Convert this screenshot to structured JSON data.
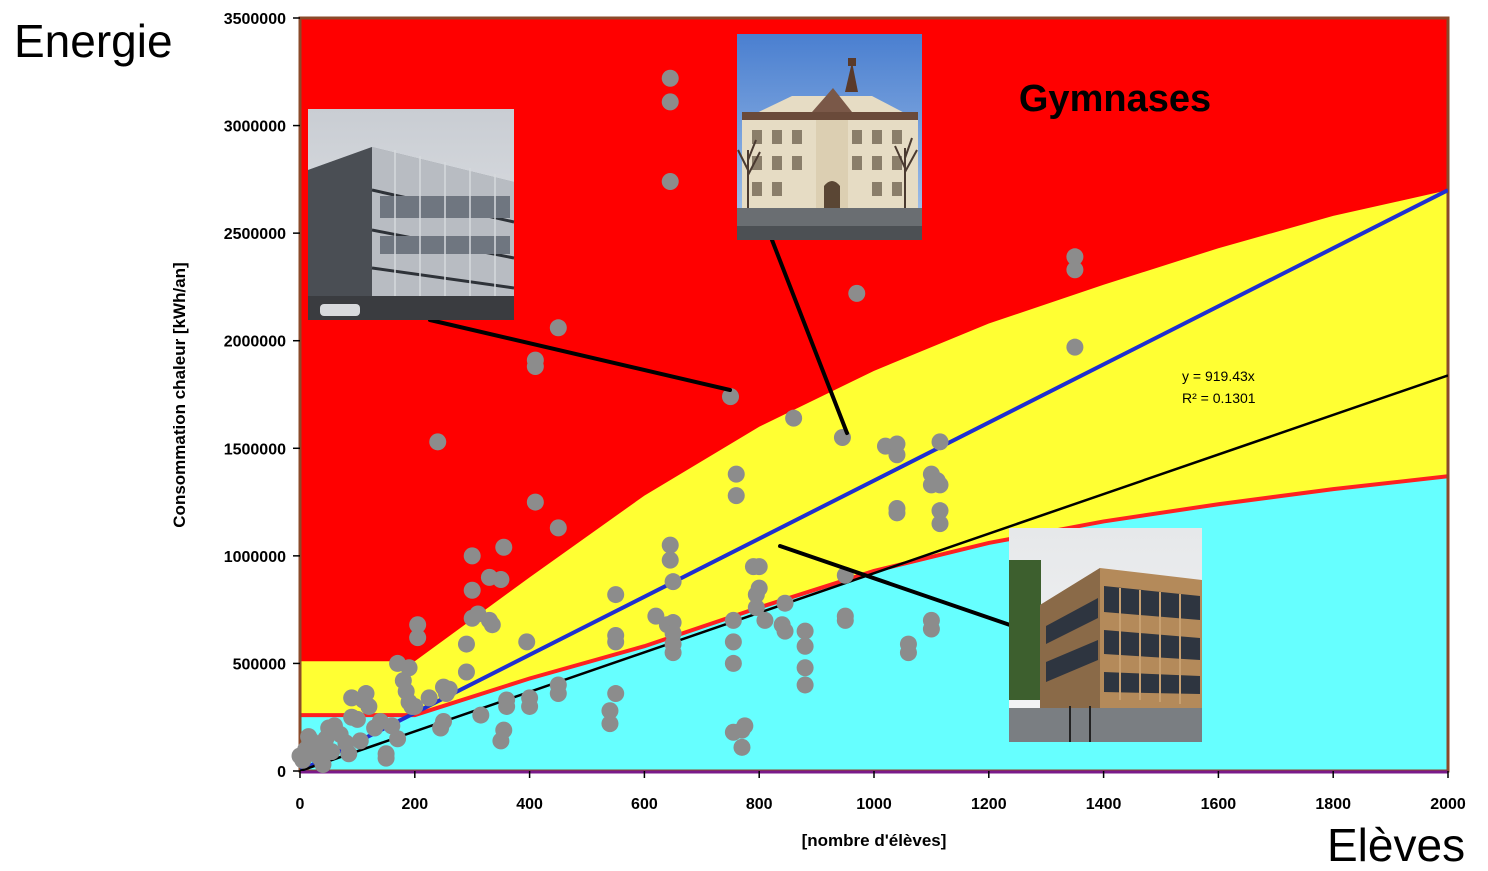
{
  "corner_labels": {
    "y_word": "Energie",
    "x_word": "Elèves"
  },
  "chart_data": {
    "type": "scatter",
    "title": "Gymnases",
    "xlabel": "[nombre d'élèves]",
    "ylabel": "Consommation chaleur [kWh/an]",
    "xlim": [
      0,
      2000
    ],
    "ylim": [
      0,
      3500000
    ],
    "x_ticks": [
      0,
      200,
      400,
      600,
      800,
      1000,
      1200,
      1400,
      1600,
      1800,
      2000
    ],
    "y_ticks": [
      0,
      500000,
      1000000,
      1500000,
      2000000,
      2500000,
      3000000,
      3500000
    ],
    "grid": false,
    "legend": "none",
    "trendline": {
      "equation_text": "y = 919.43x",
      "r2_text": "R² = 0.1301",
      "slope": 919.43,
      "color": "#000000"
    },
    "blue_reference_line": {
      "points": [
        [
          0,
          0
        ],
        [
          2000,
          2700000
        ]
      ],
      "color": "#1f2fd0"
    },
    "zones": {
      "red_color": "#ff0000",
      "yellow_color": "#ffff33",
      "cyan_color": "#66ffff",
      "yellow_upper_boundary": [
        [
          0,
          510000
        ],
        [
          200,
          510000
        ],
        [
          400,
          900000
        ],
        [
          600,
          1280000
        ],
        [
          800,
          1600000
        ],
        [
          1000,
          1860000
        ],
        [
          1200,
          2080000
        ],
        [
          1400,
          2260000
        ],
        [
          1600,
          2430000
        ],
        [
          1800,
          2580000
        ],
        [
          2000,
          2700000
        ]
      ],
      "cyan_upper_boundary": [
        [
          0,
          260000
        ],
        [
          200,
          260000
        ],
        [
          400,
          430000
        ],
        [
          600,
          580000
        ],
        [
          800,
          760000
        ],
        [
          1000,
          930000
        ],
        [
          1200,
          1060000
        ],
        [
          1400,
          1160000
        ],
        [
          1600,
          1240000
        ],
        [
          1800,
          1310000
        ],
        [
          2000,
          1370000
        ]
      ]
    },
    "series": [
      {
        "color": "#8c8c8c",
        "points": [
          [
            0,
            70000
          ],
          [
            5,
            50000
          ],
          [
            10,
            100000
          ],
          [
            15,
            160000
          ],
          [
            20,
            140000
          ],
          [
            25,
            80000
          ],
          [
            30,
            120000
          ],
          [
            35,
            60000
          ],
          [
            40,
            30000
          ],
          [
            45,
            150000
          ],
          [
            50,
            200000
          ],
          [
            55,
            90000
          ],
          [
            60,
            210000
          ],
          [
            70,
            170000
          ],
          [
            80,
            130000
          ],
          [
            85,
            80000
          ],
          [
            90,
            250000
          ],
          [
            90,
            340000
          ],
          [
            100,
            240000
          ],
          [
            105,
            140000
          ],
          [
            110,
            330000
          ],
          [
            115,
            360000
          ],
          [
            120,
            300000
          ],
          [
            130,
            200000
          ],
          [
            140,
            230000
          ],
          [
            150,
            80000
          ],
          [
            150,
            60000
          ],
          [
            160,
            210000
          ],
          [
            170,
            150000
          ],
          [
            170,
            500000
          ],
          [
            180,
            420000
          ],
          [
            185,
            370000
          ],
          [
            190,
            320000
          ],
          [
            190,
            480000
          ],
          [
            195,
            300000
          ],
          [
            200,
            300000
          ],
          [
            205,
            620000
          ],
          [
            205,
            680000
          ],
          [
            225,
            340000
          ],
          [
            240,
            1530000
          ],
          [
            245,
            200000
          ],
          [
            250,
            230000
          ],
          [
            250,
            390000
          ],
          [
            255,
            360000
          ],
          [
            260,
            380000
          ],
          [
            290,
            460000
          ],
          [
            290,
            590000
          ],
          [
            300,
            710000
          ],
          [
            300,
            840000
          ],
          [
            300,
            1000000
          ],
          [
            310,
            730000
          ],
          [
            315,
            260000
          ],
          [
            330,
            900000
          ],
          [
            330,
            700000
          ],
          [
            335,
            680000
          ],
          [
            350,
            890000
          ],
          [
            355,
            1040000
          ],
          [
            350,
            140000
          ],
          [
            355,
            190000
          ],
          [
            360,
            300000
          ],
          [
            360,
            330000
          ],
          [
            395,
            600000
          ],
          [
            400,
            300000
          ],
          [
            400,
            340000
          ],
          [
            410,
            1250000
          ],
          [
            410,
            1880000
          ],
          [
            410,
            1910000
          ],
          [
            450,
            2060000
          ],
          [
            450,
            1130000
          ],
          [
            450,
            360000
          ],
          [
            450,
            400000
          ],
          [
            540,
            220000
          ],
          [
            540,
            280000
          ],
          [
            550,
            360000
          ],
          [
            550,
            600000
          ],
          [
            550,
            630000
          ],
          [
            550,
            820000
          ],
          [
            620,
            720000
          ],
          [
            640,
            680000
          ],
          [
            645,
            980000
          ],
          [
            645,
            1050000
          ],
          [
            645,
            3220000
          ],
          [
            645,
            3110000
          ],
          [
            645,
            2740000
          ],
          [
            650,
            880000
          ],
          [
            650,
            690000
          ],
          [
            650,
            640000
          ],
          [
            650,
            590000
          ],
          [
            650,
            550000
          ],
          [
            750,
            1740000
          ],
          [
            755,
            180000
          ],
          [
            755,
            500000
          ],
          [
            755,
            600000
          ],
          [
            755,
            700000
          ],
          [
            760,
            1380000
          ],
          [
            760,
            1280000
          ],
          [
            770,
            110000
          ],
          [
            770,
            190000
          ],
          [
            775,
            210000
          ],
          [
            790,
            950000
          ],
          [
            795,
            760000
          ],
          [
            795,
            820000
          ],
          [
            800,
            950000
          ],
          [
            800,
            850000
          ],
          [
            810,
            700000
          ],
          [
            840,
            680000
          ],
          [
            845,
            650000
          ],
          [
            845,
            780000
          ],
          [
            860,
            1640000
          ],
          [
            880,
            400000
          ],
          [
            880,
            480000
          ],
          [
            880,
            580000
          ],
          [
            880,
            650000
          ],
          [
            945,
            1550000
          ],
          [
            950,
            700000
          ],
          [
            950,
            720000
          ],
          [
            950,
            910000
          ],
          [
            970,
            2220000
          ],
          [
            1020,
            1510000
          ],
          [
            1040,
            1470000
          ],
          [
            1040,
            1520000
          ],
          [
            1040,
            1220000
          ],
          [
            1040,
            1200000
          ],
          [
            1060,
            590000
          ],
          [
            1060,
            550000
          ],
          [
            1100,
            1380000
          ],
          [
            1100,
            1330000
          ],
          [
            1100,
            700000
          ],
          [
            1100,
            660000
          ],
          [
            1110,
            1350000
          ],
          [
            1115,
            1530000
          ],
          [
            1115,
            1150000
          ],
          [
            1115,
            1210000
          ],
          [
            1115,
            1330000
          ],
          [
            1350,
            2390000
          ],
          [
            1350,
            2330000
          ],
          [
            1350,
            1970000
          ]
        ]
      }
    ],
    "photo_callouts": [
      {
        "subject": "modern concrete school building",
        "target": [
          750,
          1740000
        ]
      },
      {
        "subject": "historic school building with tower",
        "target": [
          945,
          1550000
        ]
      },
      {
        "subject": "1960s school building with ribbon windows",
        "target": [
          840,
          1030000
        ]
      }
    ]
  }
}
